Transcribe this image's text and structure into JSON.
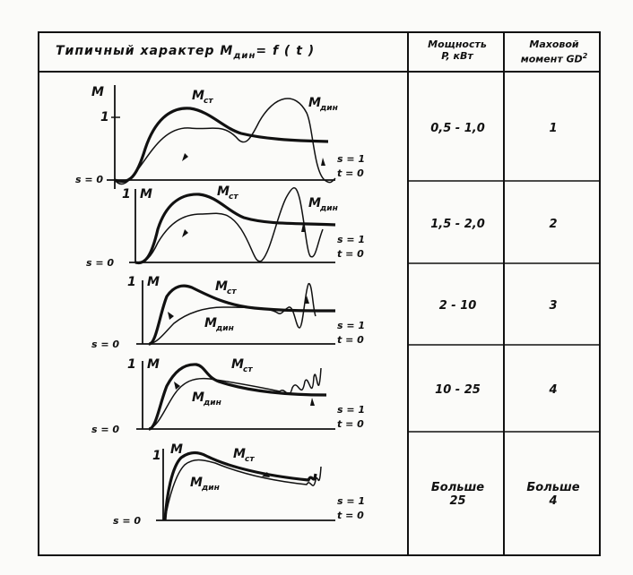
{
  "table": {
    "header": {
      "graph_col": "Типичный   характер M",
      "graph_col_sub": "дин",
      "graph_col_tail": "= f ( t )",
      "power_col_line1": "Мощность",
      "power_col_line2": "P, кВт",
      "moment_col_line1": "Маховой",
      "moment_col_line2": "момент GD",
      "moment_col_sup": "2"
    },
    "rows": [
      {
        "power": "0,5 - 1,0",
        "moment": "1"
      },
      {
        "power": "1,5 - 2,0",
        "moment": "2"
      },
      {
        "power": "2 - 10",
        "moment": "3"
      },
      {
        "power": "10 - 25",
        "moment": "4"
      },
      {
        "power_line1": "Больше",
        "power_line2": "25",
        "moment_line1": "Больше",
        "moment_line2": "4"
      }
    ]
  },
  "graph_labels": {
    "m_axis": "M",
    "one": "1",
    "m_st": "M",
    "m_st_sub": "ст",
    "m_din": "M",
    "m_din_sub": "дин",
    "s_zero": "s = 0",
    "s_one": "s = 1",
    "t_zero": "t = 0"
  }
}
